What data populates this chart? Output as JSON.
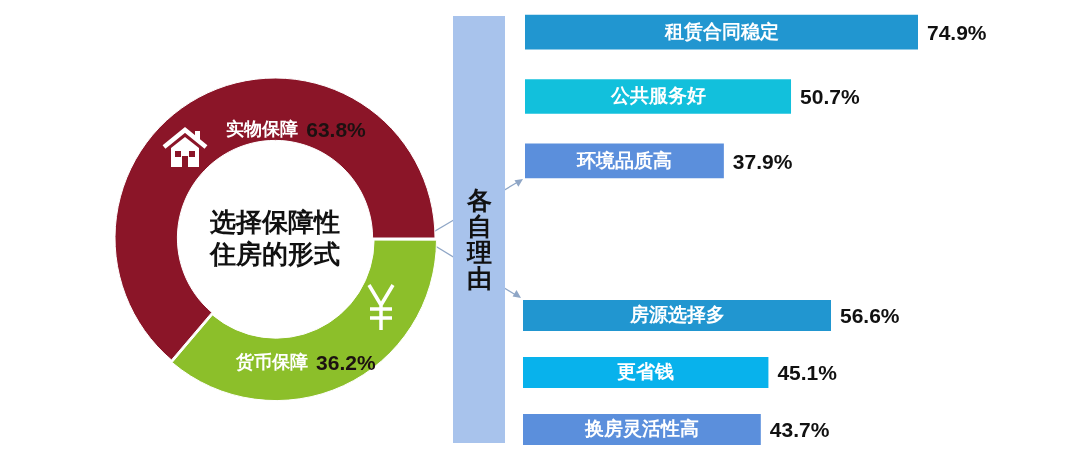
{
  "chart_data": [
    {
      "type": "donut",
      "title": "选择保障性住房的形式",
      "categories": [
        "实物保障",
        "货币保障"
      ],
      "values": [
        63.8,
        36.2
      ],
      "colors": [
        "#8b1528",
        "#8cbf2a"
      ],
      "value_labels": [
        "63.8%",
        "36.2%"
      ]
    },
    {
      "type": "other",
      "title": "各自理由"
    },
    {
      "type": "bar",
      "orientation": "horizontal",
      "categories": [
        "租赁合同稳定",
        "公共服务好",
        "环境品质高"
      ],
      "values": [
        74.9,
        50.7,
        37.9
      ],
      "colors": [
        "#2196d0",
        "#12c0dc",
        "#5b8fdc"
      ],
      "value_labels": [
        "74.9%",
        "50.7%",
        "37.9%"
      ]
    },
    {
      "type": "bar",
      "orientation": "horizontal",
      "categories": [
        "房源选择多",
        "更省钱",
        "换房灵活性高"
      ],
      "values": [
        56.6,
        45.1,
        43.7
      ],
      "colors": [
        "#2196d0",
        "#08b2ec",
        "#5b8fdc"
      ],
      "value_labels": [
        "56.6%",
        "45.1%",
        "43.7%"
      ]
    }
  ]
}
